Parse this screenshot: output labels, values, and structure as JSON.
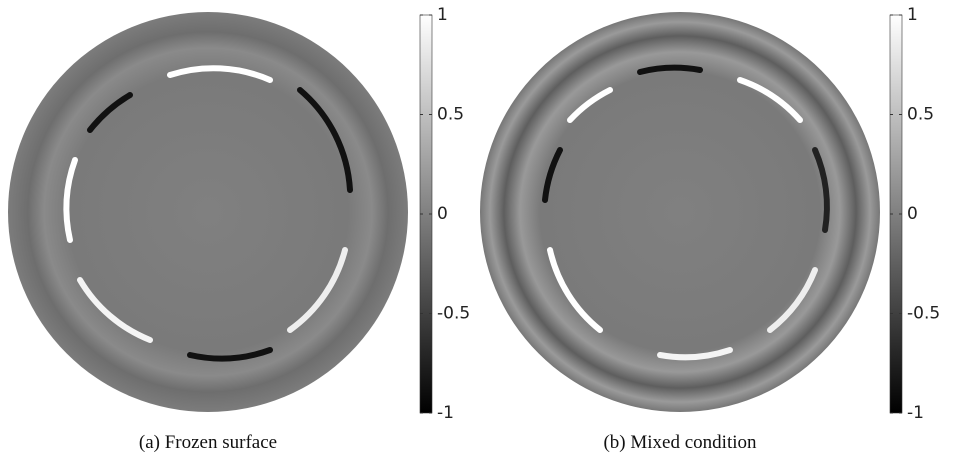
{
  "chart_data": [
    {
      "type": "contour",
      "caption": "(a) Frozen surface",
      "colormap": "gray",
      "clim": [
        -1,
        1
      ],
      "cticks": [
        -1,
        -0.5,
        0,
        0.5,
        1
      ]
    },
    {
      "type": "contour",
      "caption": "(b) Mixed condition",
      "colormap": "gray",
      "clim": [
        -1,
        1
      ],
      "cticks": [
        -1,
        -0.5,
        0,
        0.5,
        1
      ]
    }
  ]
}
